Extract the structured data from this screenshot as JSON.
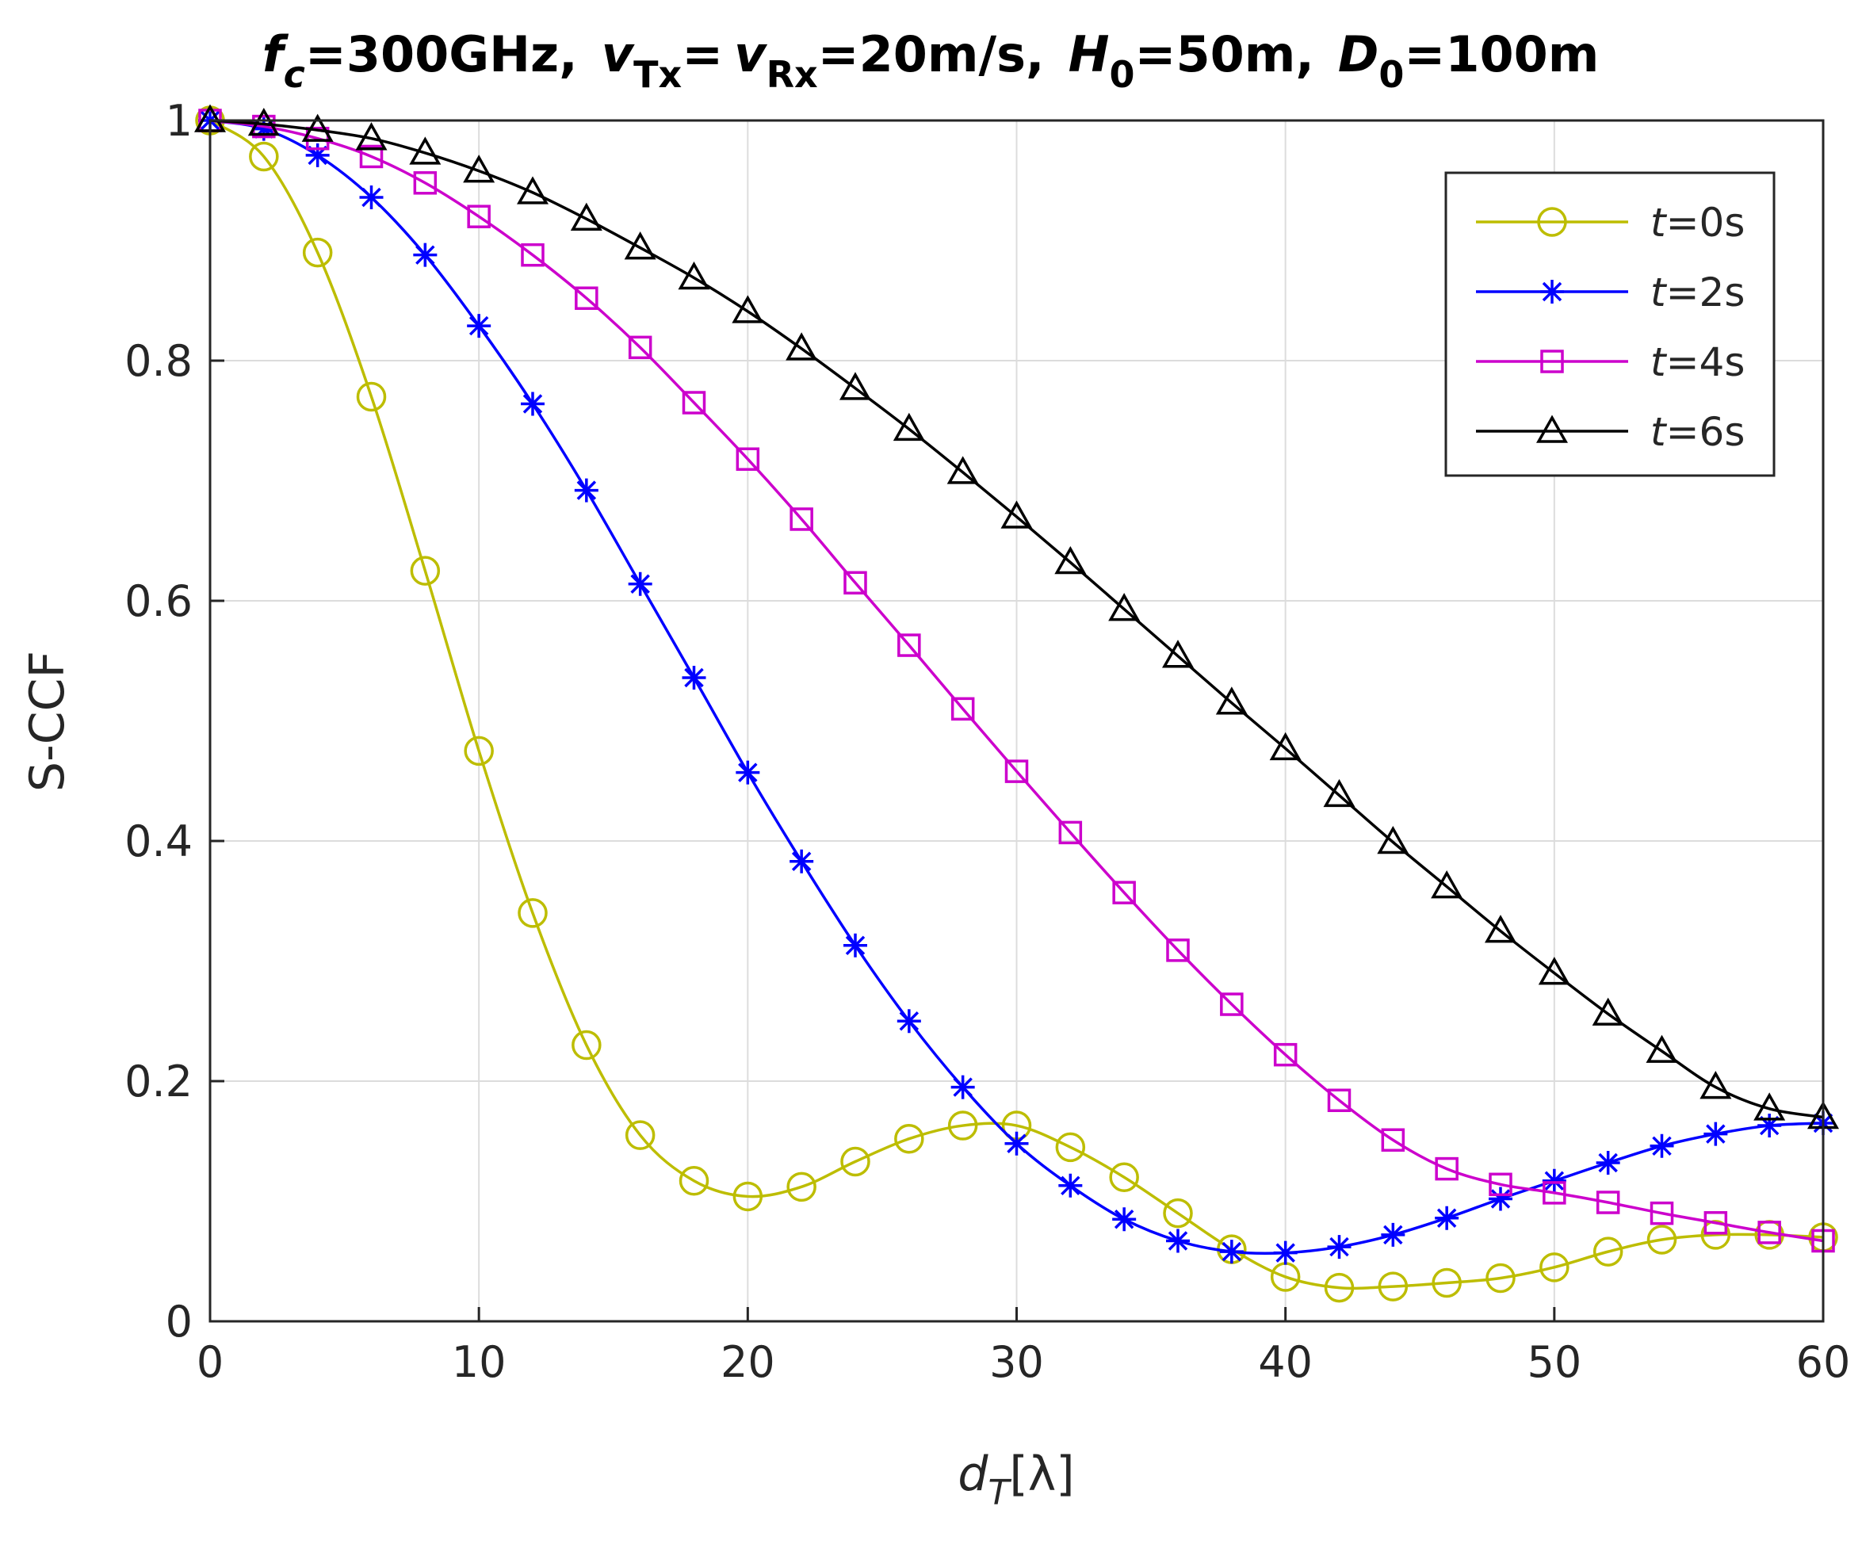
{
  "chart_data": {
    "type": "line",
    "title_parts": {
      "f": "f",
      "f_sub": "c",
      "f_eq": "=300GHz,",
      "v1": "v",
      "v1_sub": "Tx",
      "v1_eq": "=",
      "v2": "v",
      "v2_sub": "Rx",
      "v2_eq": "=20m/s,",
      "h": "H",
      "h_sub": "0",
      "h_eq": "=50m,",
      "d": "D",
      "d_sub": "0",
      "d_eq": "=100m"
    },
    "xlabel": {
      "main": "d",
      "sub": "T",
      "unit": "[λ]"
    },
    "ylabel": "S-CCF",
    "xlim": [
      0,
      60
    ],
    "ylim": [
      0,
      1
    ],
    "xticks": [
      0,
      10,
      20,
      30,
      40,
      50,
      60
    ],
    "yticks": [
      0,
      0.2,
      0.4,
      0.6,
      0.8,
      1
    ],
    "ytick_labels": [
      "0",
      "0.2",
      "0.4",
      "0.6",
      "0.8",
      "1"
    ],
    "grid": true,
    "legend_position": "top-right",
    "x": [
      0,
      2,
      4,
      6,
      8,
      10,
      12,
      14,
      16,
      18,
      20,
      22,
      24,
      26,
      28,
      30,
      32,
      34,
      36,
      38,
      40,
      42,
      44,
      46,
      48,
      50,
      52,
      54,
      56,
      58,
      60
    ],
    "series": [
      {
        "name": "t=0s",
        "italic": "t",
        "rest": "=0s",
        "color": "#bdbd00",
        "marker": "circle",
        "values": [
          1.0,
          0.97,
          0.89,
          0.77,
          0.625,
          0.475,
          0.34,
          0.23,
          0.155,
          0.117,
          0.104,
          0.112,
          0.133,
          0.152,
          0.163,
          0.163,
          0.145,
          0.12,
          0.09,
          0.06,
          0.037,
          0.028,
          0.029,
          0.032,
          0.036,
          0.045,
          0.058,
          0.068,
          0.072,
          0.072,
          0.07
        ]
      },
      {
        "name": "t=2s",
        "italic": "t",
        "rest": "=2s",
        "color": "#0000ff",
        "marker": "asterisk",
        "values": [
          1.0,
          0.993,
          0.971,
          0.936,
          0.888,
          0.829,
          0.764,
          0.692,
          0.614,
          0.536,
          0.457,
          0.383,
          0.313,
          0.25,
          0.195,
          0.148,
          0.113,
          0.085,
          0.067,
          0.058,
          0.057,
          0.062,
          0.072,
          0.086,
          0.102,
          0.117,
          0.132,
          0.146,
          0.156,
          0.163,
          0.165
        ]
      },
      {
        "name": "t=4s",
        "italic": "t",
        "rest": "=4s",
        "color": "#cc00cc",
        "marker": "square",
        "values": [
          1.0,
          0.995,
          0.985,
          0.97,
          0.948,
          0.92,
          0.888,
          0.852,
          0.811,
          0.765,
          0.718,
          0.668,
          0.615,
          0.563,
          0.51,
          0.458,
          0.407,
          0.357,
          0.309,
          0.264,
          0.222,
          0.184,
          0.151,
          0.127,
          0.114,
          0.107,
          0.099,
          0.09,
          0.082,
          0.074,
          0.067
        ]
      },
      {
        "name": "t=6s",
        "italic": "t",
        "rest": "=6s",
        "color": "#000000",
        "marker": "triangle",
        "values": [
          1.0,
          0.997,
          0.992,
          0.985,
          0.973,
          0.958,
          0.94,
          0.918,
          0.894,
          0.869,
          0.841,
          0.81,
          0.777,
          0.743,
          0.707,
          0.67,
          0.632,
          0.593,
          0.554,
          0.515,
          0.477,
          0.438,
          0.399,
          0.362,
          0.325,
          0.29,
          0.256,
          0.225,
          0.195,
          0.177,
          0.17
        ]
      }
    ]
  }
}
